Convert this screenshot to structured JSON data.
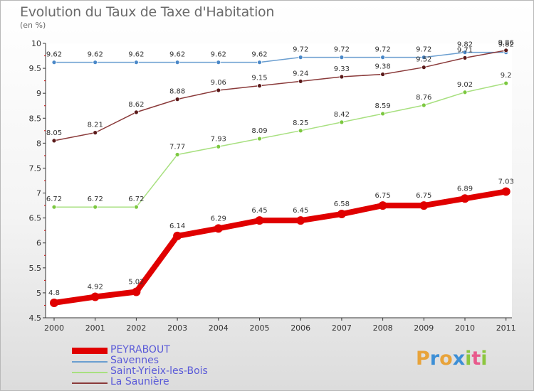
{
  "header": {
    "title": "Evolution du Taux de Taxe d'Habitation",
    "subtitle": "(en %)"
  },
  "logo": {
    "text": "Proxiti",
    "letters": [
      "P",
      "r",
      "o",
      "x",
      "i",
      "t",
      "i"
    ],
    "colors": [
      "#e8a33a",
      "#3d8fd6",
      "#e8a33a",
      "#3d8fd6",
      "#8cc63f",
      "#e85a8c",
      "#8cc63f"
    ]
  },
  "chart_data": {
    "type": "line",
    "title": "Evolution du Taux de Taxe d'Habitation",
    "ylabel": "(en %)",
    "xlabel": "",
    "x": [
      "2000",
      "2001",
      "2002",
      "2003",
      "2004",
      "2005",
      "2006",
      "2007",
      "2008",
      "2009",
      "2010",
      "2011"
    ],
    "ylim": [
      4.5,
      10
    ],
    "yticks": [
      "4.5",
      "5",
      "5.5",
      "6",
      "6.5",
      "7",
      "7.5",
      "8",
      "8.5",
      "9",
      "9.5",
      "10"
    ],
    "grid": false,
    "legend_position": "bottom-left",
    "series": [
      {
        "name": "PEYRABOUT",
        "color": "#e00000",
        "marker": "#e00000",
        "width": "thick",
        "values": [
          4.8,
          4.92,
          5.02,
          6.14,
          6.29,
          6.45,
          6.45,
          6.58,
          6.75,
          6.75,
          6.89,
          7.03
        ],
        "labels": [
          "4.8",
          "4.92",
          "5.02",
          "6.14",
          "6.29",
          "6.45",
          "6.45",
          "6.58",
          "6.75",
          "6.75",
          "6.89",
          "7.03"
        ]
      },
      {
        "name": "Savennes",
        "color": "#6a9ed0",
        "marker": "#4a88c8",
        "width": "thin",
        "values": [
          9.62,
          9.62,
          9.62,
          9.62,
          9.62,
          9.62,
          9.72,
          9.72,
          9.72,
          9.72,
          9.82,
          9.82
        ],
        "labels": [
          "9.62",
          "9.62",
          "9.62",
          "9.62",
          "9.62",
          "9.62",
          "9.72",
          "9.72",
          "9.72",
          "9.72",
          "9.82",
          "9.82"
        ]
      },
      {
        "name": "Saint-Yrieix-les-Bois",
        "color": "#a8e080",
        "marker": "#7cc840",
        "width": "thin",
        "values": [
          6.72,
          6.72,
          6.72,
          7.77,
          7.93,
          8.09,
          8.25,
          8.42,
          8.59,
          8.76,
          9.02,
          9.2
        ],
        "labels": [
          "6.72",
          "6.72",
          "6.72",
          "7.77",
          "7.93",
          "8.09",
          "8.25",
          "8.42",
          "8.59",
          "8.76",
          "9.02",
          "9.2"
        ]
      },
      {
        "name": "La Saunière",
        "color": "#8a3a3a",
        "marker": "#5a1a1a",
        "width": "thin",
        "values": [
          8.05,
          8.21,
          8.62,
          8.88,
          9.06,
          9.15,
          9.24,
          9.33,
          9.38,
          9.52,
          9.71,
          9.86
        ],
        "labels": [
          "8.05",
          "8.21",
          "8.62",
          "8.88",
          "9.06",
          "9.15",
          "9.24",
          "9.33",
          "9.38",
          "9.52",
          "9.71",
          "9.86"
        ]
      }
    ]
  }
}
